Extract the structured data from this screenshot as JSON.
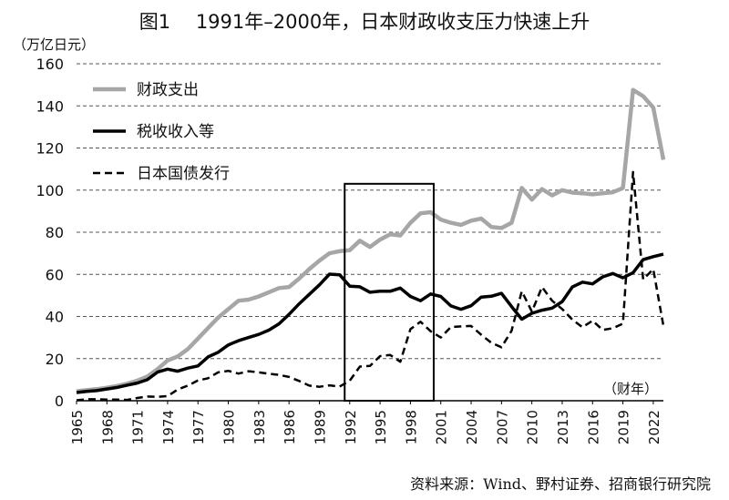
{
  "title": "图1　 1991年–2000年，日本财政收支压力快速上升",
  "y_unit": "（万亿日元）",
  "x_unit": "（财年）",
  "source": "资料来源：Wind、野村证券、招商银行研究院",
  "colors": {
    "spending": "#a6a6a6",
    "revenue": "#000000",
    "bonds": "#000000",
    "grid": "#555555"
  },
  "chart_data": {
    "type": "line",
    "title": "图1　 1991年–2000年，日本财政收支压力快速上升",
    "xlabel": "（财年）",
    "ylabel": "（万亿日元）",
    "ylim": [
      0,
      160
    ],
    "xlim": [
      1965,
      2023
    ],
    "yticks": [
      "0",
      "20",
      "40",
      "60",
      "80",
      "100",
      "120",
      "140",
      "160"
    ],
    "xticks": [
      "1965",
      "1968",
      "1971",
      "1974",
      "1977",
      "1980",
      "1983",
      "1986",
      "1989",
      "1992",
      "1995",
      "1998",
      "2001",
      "2004",
      "2007",
      "2010",
      "2013",
      "2016",
      "2019",
      "2022"
    ],
    "grid": "horizontal dashed",
    "legend_position": "top-left",
    "highlight_box": {
      "x_from": 1991.5,
      "x_to": 2000.3,
      "y_from": 0,
      "y_to": 103
    },
    "x": [
      1965,
      1966,
      1967,
      1968,
      1969,
      1970,
      1971,
      1972,
      1973,
      1974,
      1975,
      1976,
      1977,
      1978,
      1979,
      1980,
      1981,
      1982,
      1983,
      1984,
      1985,
      1986,
      1987,
      1988,
      1989,
      1990,
      1991,
      1992,
      1993,
      1994,
      1995,
      1996,
      1997,
      1998,
      1999,
      2000,
      2001,
      2002,
      2003,
      2004,
      2005,
      2006,
      2007,
      2008,
      2009,
      2010,
      2011,
      2012,
      2013,
      2014,
      2015,
      2016,
      2017,
      2018,
      2019,
      2020,
      2021,
      2022,
      2023
    ],
    "series": [
      {
        "name": "财政支出",
        "style": "solid-gray",
        "values": [
          4.5,
          5.0,
          5.5,
          6.2,
          7.0,
          8.1,
          9.5,
          11.5,
          15.0,
          19.1,
          21.0,
          24.5,
          29.5,
          34.5,
          39.5,
          43.5,
          47.5,
          48.0,
          49.5,
          51.5,
          53.5,
          54.0,
          58.0,
          62.5,
          66.5,
          70.0,
          71.0,
          71.5,
          76.0,
          73.0,
          76.5,
          79.0,
          78.5,
          84.5,
          89.0,
          89.5,
          86.0,
          84.5,
          83.5,
          85.5,
          86.5,
          82.5,
          82.0,
          84.5,
          101.0,
          95.5,
          100.5,
          97.5,
          100.0,
          98.8,
          98.5,
          98.0,
          98.5,
          99.0,
          101.0,
          147.6,
          144.6,
          139.2,
          114.4
        ]
      },
      {
        "name": "税收收入等",
        "style": "solid-black",
        "values": [
          3.9,
          4.4,
          4.8,
          5.6,
          6.3,
          7.4,
          8.4,
          10.0,
          13.6,
          15.0,
          14.0,
          15.5,
          16.5,
          20.8,
          23.0,
          26.5,
          28.5,
          30.0,
          31.5,
          33.5,
          36.5,
          41.0,
          46.0,
          50.5,
          55.0,
          60.1,
          59.8,
          54.4,
          54.1,
          51.5,
          52.0,
          52.0,
          53.5,
          49.5,
          47.5,
          50.7,
          49.5,
          45.0,
          43.4,
          45.1,
          49.2,
          49.6,
          51.0,
          44.7,
          38.7,
          41.5,
          43.0,
          44.0,
          47.1,
          54.0,
          56.3,
          55.5,
          58.8,
          60.4,
          58.4,
          60.8,
          67.0,
          68.4,
          69.6
        ]
      },
      {
        "name": "日本国债发行",
        "style": "dashed-black",
        "values": [
          0.2,
          0.7,
          0.7,
          0.5,
          0.5,
          0.4,
          1.3,
          2.0,
          1.8,
          2.2,
          5.3,
          7.2,
          9.6,
          10.7,
          13.5,
          14.2,
          12.9,
          14.0,
          13.5,
          12.8,
          12.3,
          11.3,
          9.4,
          7.2,
          6.6,
          7.3,
          6.7,
          9.5,
          16.2,
          16.5,
          21.2,
          21.7,
          18.5,
          34.0,
          37.5,
          33.0,
          30.0,
          35.0,
          35.3,
          35.5,
          31.3,
          27.5,
          25.4,
          33.2,
          52.0,
          42.3,
          54.0,
          47.5,
          43.5,
          38.5,
          34.9,
          38.0,
          33.6,
          34.4,
          36.6,
          108.6,
          57.6,
          62.5,
          35.6
        ]
      }
    ]
  }
}
